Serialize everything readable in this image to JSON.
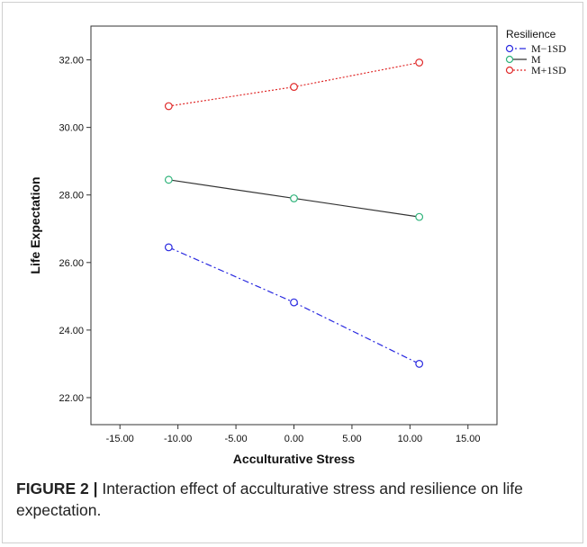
{
  "figure": {
    "caption_label": "FIGURE 2 |",
    "caption_text": " Interaction effect of acculturative stress and resilience on life expectation."
  },
  "chart_data": {
    "type": "line",
    "title": "",
    "xlabel": "Acculturative  Stress",
    "ylabel": "Life  Expectation",
    "xlim": [
      -17.5,
      17.5
    ],
    "ylim": [
      21.2,
      33.0
    ],
    "x_ticks": [
      -15,
      -10,
      -5,
      0,
      5,
      10,
      15
    ],
    "x_tick_labels": [
      "-15.00",
      "-10.00",
      "-5.00",
      "0.00",
      "5.00",
      "10.00",
      "15.00"
    ],
    "y_ticks": [
      22,
      24,
      26,
      28,
      30,
      32
    ],
    "y_tick_labels": [
      "22.00",
      "24.00",
      "26.00",
      "28.00",
      "30.00",
      "32.00"
    ],
    "grid": false,
    "legend": {
      "title": "Resilience",
      "placement": "top-right"
    },
    "series": [
      {
        "name": "M−1SD",
        "x": [
          -10.8,
          0,
          10.8
        ],
        "y": [
          26.45,
          24.82,
          23.0
        ],
        "color": "#2a2ae0",
        "dash": "7,3,2,3",
        "marker_color": "#2a2ae0"
      },
      {
        "name": "M",
        "x": [
          -10.8,
          0,
          10.8
        ],
        "y": [
          28.45,
          27.9,
          27.35
        ],
        "color": "#333333",
        "dash": "",
        "marker_color": "#2fb37a"
      },
      {
        "name": "M+1SD",
        "x": [
          -10.8,
          0,
          10.8
        ],
        "y": [
          30.63,
          31.2,
          31.92
        ],
        "color": "#e02a2a",
        "dash": "2,2",
        "marker_color": "#e02a2a"
      }
    ]
  }
}
